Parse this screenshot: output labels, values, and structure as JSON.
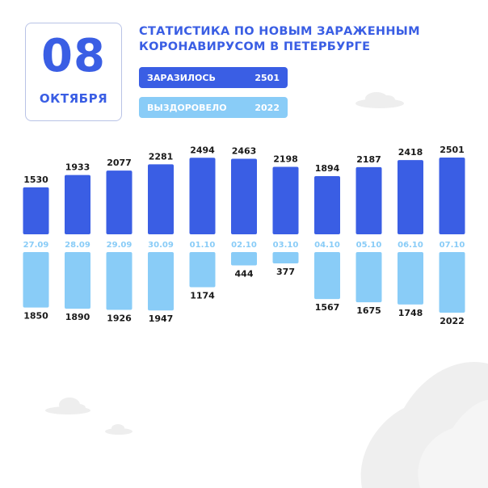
{
  "date": {
    "day": "08",
    "month": "ОКТЯБРЯ"
  },
  "title_line1": "СТАТИСТИКА ПО НОВЫМ ЗАРАЖЕННЫМ",
  "title_line2": "КОРОНАВИРУСОМ В ПЕТЕРБУРГЕ",
  "legend": {
    "infected_label": "ЗАРАЗИЛОСЬ",
    "infected_value": "2501",
    "recovered_label": "ВЫЗДОРОВЕЛО",
    "recovered_value": "2022"
  },
  "colors": {
    "infected": "#3a5ee4",
    "recovered": "#89ccf7",
    "text": "#1a1a1a"
  },
  "chart_data": {
    "type": "bar",
    "categories": [
      "27.09",
      "28.09",
      "29.09",
      "30.09",
      "01.10",
      "02.10",
      "03.10",
      "04.10",
      "05.10",
      "06.10",
      "07.10"
    ],
    "series": [
      {
        "name": "ЗАРАЗИЛОСЬ",
        "values": [
          1530,
          1933,
          2077,
          2281,
          2494,
          2463,
          2198,
          1894,
          2187,
          2418,
          2501
        ]
      },
      {
        "name": "ВЫЗДОРОВЕЛО",
        "values": [
          1850,
          1890,
          1926,
          1947,
          1174,
          444,
          377,
          1567,
          1675,
          1748,
          2022
        ]
      }
    ],
    "title": "",
    "xlabel": "",
    "ylabel": "",
    "grid": false,
    "legend": "top"
  }
}
